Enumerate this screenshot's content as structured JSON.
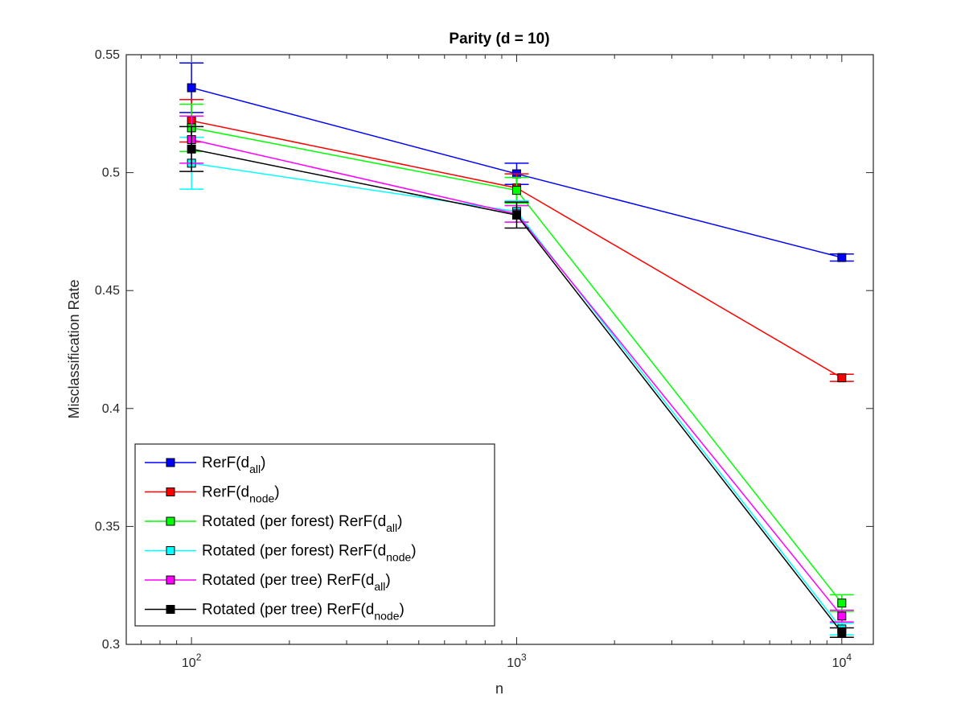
{
  "chart_data": {
    "type": "line",
    "title": "Parity (d = 10)",
    "xlabel": "n",
    "ylabel": "Misclassification Rate",
    "x": [
      100,
      1000,
      10000
    ],
    "x_tick_labels": [
      {
        "base": "10",
        "exp": "2"
      },
      {
        "base": "10",
        "exp": "3"
      },
      {
        "base": "10",
        "exp": "4"
      }
    ],
    "xscale": "log",
    "xlim": [
      63,
      12500
    ],
    "ylim": [
      0.3,
      0.55
    ],
    "yticks": [
      0.3,
      0.35,
      0.4,
      0.45,
      0.5,
      0.55
    ],
    "ytick_labels": [
      "0.3",
      "0.35",
      "0.4",
      "0.45",
      "0.5",
      "0.55"
    ],
    "grid": false,
    "legend_position": "bottom-left",
    "series": [
      {
        "name": {
          "main": "RerF(d",
          "sub": "all",
          "tail": ")"
        },
        "color": "#0000ff",
        "values": [
          0.536,
          0.4995,
          0.464
        ],
        "err": [
          0.0105,
          0.0045,
          0.0015
        ]
      },
      {
        "name": {
          "main": "RerF(d",
          "sub": "node",
          "tail": ")"
        },
        "color": "#ff0000",
        "values": [
          0.522,
          0.4935,
          0.413
        ],
        "err": [
          0.009,
          0.006,
          0.0015
        ]
      },
      {
        "name": {
          "main": "Rotated (per forest) RerF(d",
          "sub": "all",
          "tail": ")"
        },
        "color": "#00ff00",
        "values": [
          0.519,
          0.4925,
          0.3175
        ],
        "err": [
          0.01,
          0.0055,
          0.0035
        ]
      },
      {
        "name": {
          "main": "Rotated (per forest) RerF(d",
          "sub": "node",
          "tail": ")"
        },
        "color": "#00ffff",
        "values": [
          0.504,
          0.4835,
          0.3065
        ],
        "err": [
          0.011,
          0.0045,
          0.0025
        ]
      },
      {
        "name": {
          "main": "Rotated (per tree) RerF(d",
          "sub": "all",
          "tail": ")"
        },
        "color": "#ff00ff",
        "values": [
          0.514,
          0.4825,
          0.312
        ],
        "err": [
          0.01,
          0.0035,
          0.0025
        ]
      },
      {
        "name": {
          "main": "Rotated (per tree) RerF(d",
          "sub": "node",
          "tail": ")"
        },
        "color": "#000000",
        "values": [
          0.51,
          0.482,
          0.305
        ],
        "err": [
          0.0095,
          0.0055,
          0.002
        ]
      }
    ]
  }
}
